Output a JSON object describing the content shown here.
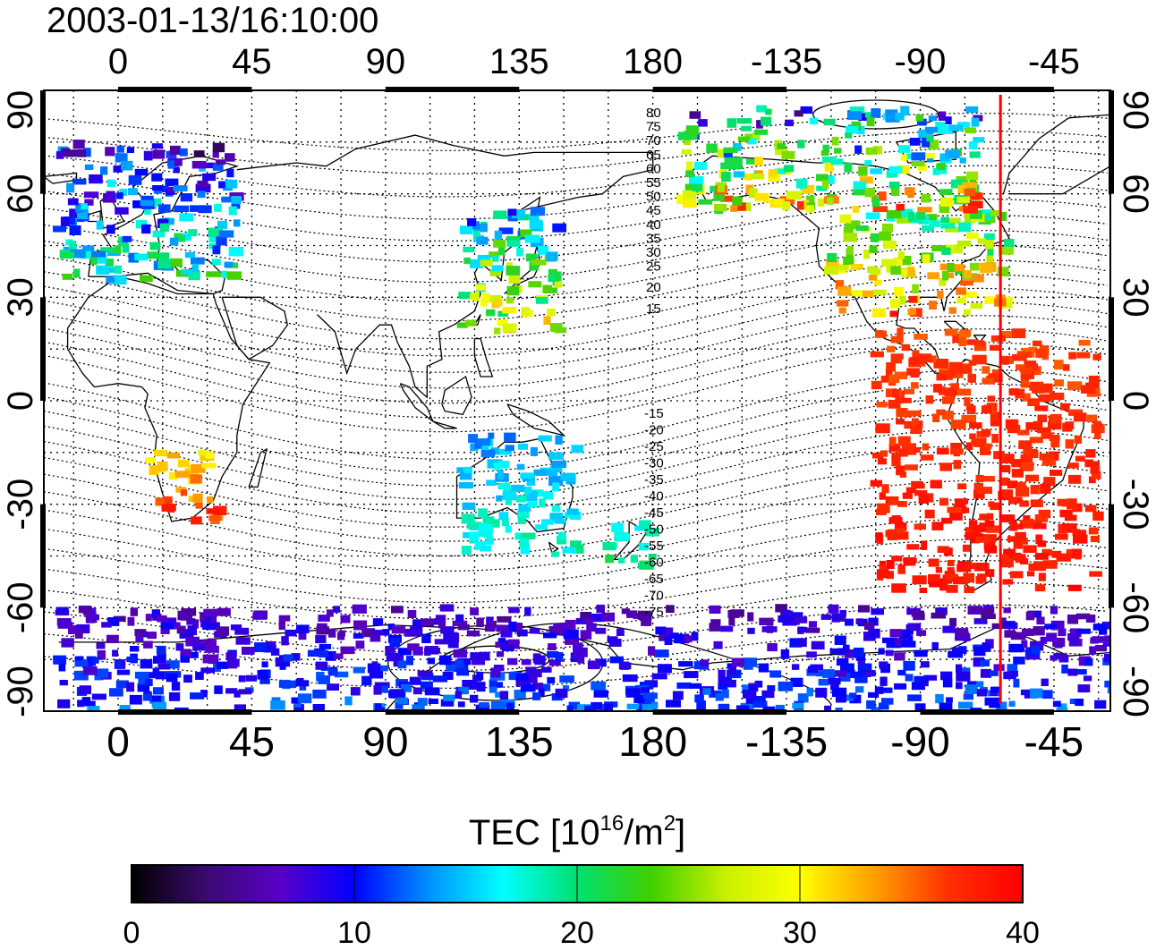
{
  "timestamp": "2003-01-13/16:10:00",
  "map": {
    "lon_ticks": [
      {
        "lon": 0,
        "label": "0"
      },
      {
        "lon": 45,
        "label": "45"
      },
      {
        "lon": 90,
        "label": "90"
      },
      {
        "lon": 135,
        "label": "135"
      },
      {
        "lon": 180,
        "label": "180"
      },
      {
        "lon": 225,
        "label": "-135"
      },
      {
        "lon": 270,
        "label": "-90"
      },
      {
        "lon": 315,
        "label": "-45"
      }
    ],
    "lat_ticks": [
      {
        "lat": 90,
        "label": "90"
      },
      {
        "lat": 60,
        "label": "60"
      },
      {
        "lat": 30,
        "label": "30"
      },
      {
        "lat": 0,
        "label": "0"
      },
      {
        "lat": -30,
        "label": "-30"
      },
      {
        "lat": -60,
        "label": "-60"
      },
      {
        "lat": -90,
        "label": "-90"
      }
    ],
    "lon_range": [
      -25,
      334
    ],
    "lat_range": [
      -90,
      90
    ],
    "grid": "dotted",
    "noon_meridian_lon": 297,
    "noon_meridian_color": "#ff0000",
    "contour_labels": [
      "80",
      "75",
      "70",
      "65",
      "60",
      "55",
      "50",
      "45",
      "40",
      "35",
      "30",
      "25",
      "20",
      "15",
      "-15",
      "-20",
      "-25",
      "-30",
      "-35",
      "-40",
      "-45",
      "-50",
      "-55",
      "-60",
      "-65",
      "-70",
      "-75"
    ]
  },
  "colorbar": {
    "title_prefix": "TEC  [10",
    "title_exp": "16",
    "title_mid": "/m",
    "title_exp2": "2",
    "title_suffix": "]",
    "min": 0,
    "max": 40,
    "tick_labels": [
      "0",
      "10",
      "20",
      "30",
      "40"
    ],
    "colors": [
      "#000000",
      "#3a0a6e",
      "#5a00c8",
      "#0000ff",
      "#0090ff",
      "#00ffff",
      "#00e070",
      "#40d000",
      "#c8f000",
      "#ffff00",
      "#ffa000",
      "#ff3000",
      "#ff0000"
    ]
  },
  "chart_data": {
    "type": "scatter",
    "title": "2003-01-13/16:10:00",
    "xlabel": "",
    "ylabel": "",
    "xlim": [
      -25,
      334
    ],
    "ylim": [
      -90,
      90
    ],
    "value_label": "TEC  [10^16/m^2]",
    "value_range": [
      0,
      40
    ],
    "regions": [
      {
        "lon_range": [
          -20,
          40
        ],
        "lat_range": [
          35,
          75
        ],
        "tec_range": [
          1,
          25
        ]
      },
      {
        "lon_range": [
          240,
          300
        ],
        "lat_range": [
          25,
          55
        ],
        "tec_range": [
          15,
          40
        ]
      },
      {
        "lon_range": [
          255,
          330
        ],
        "lat_range": [
          -55,
          20
        ],
        "tec_range": [
          35,
          40
        ]
      },
      {
        "lon_range": [
          115,
          150
        ],
        "lat_range": [
          20,
          55
        ],
        "tec_range": [
          8,
          35
        ]
      },
      {
        "lon_range": [
          115,
          155
        ],
        "lat_range": [
          -45,
          -10
        ],
        "tec_range": [
          12,
          20
        ]
      },
      {
        "lon_range": [
          165,
          180
        ],
        "lat_range": [
          -48,
          -34
        ],
        "tec_range": [
          14,
          22
        ]
      },
      {
        "lon_range": [
          10,
          35
        ],
        "lat_range": [
          -35,
          -15
        ],
        "tec_range": [
          28,
          40
        ]
      },
      {
        "lon_range": [
          -20,
          360
        ],
        "lat_range": [
          -90,
          -60
        ],
        "tec_range": [
          4,
          14
        ]
      },
      {
        "lon_range": [
          190,
          290
        ],
        "lat_range": [
          55,
          85
        ],
        "tec_range": [
          3,
          40
        ]
      }
    ]
  }
}
